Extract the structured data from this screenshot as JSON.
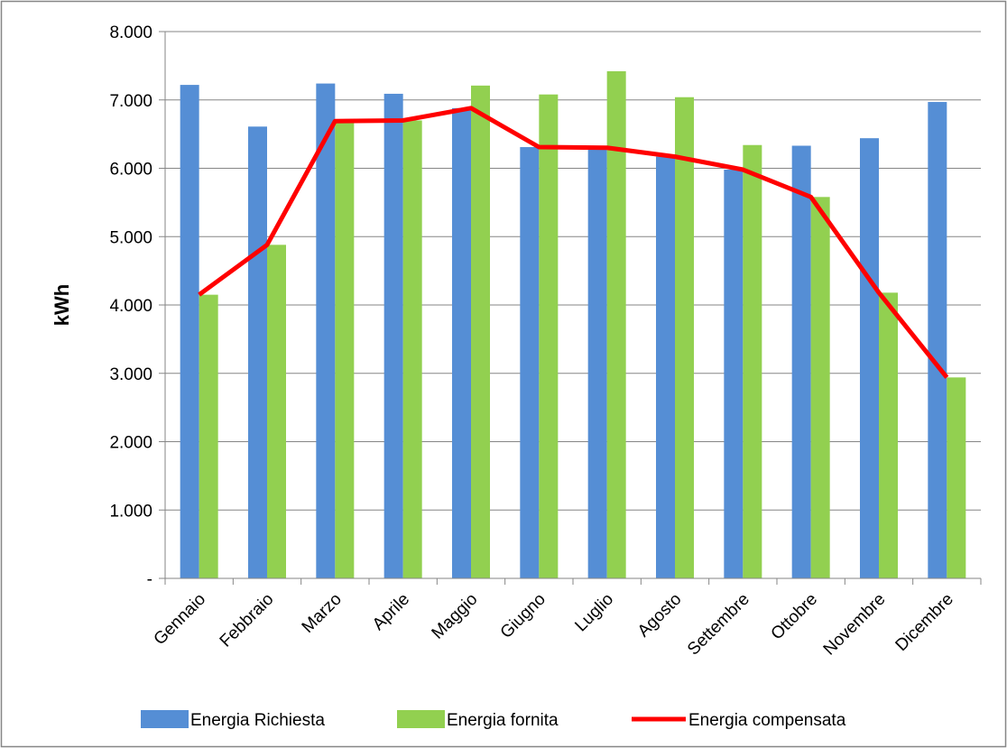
{
  "chart_data": {
    "type": "bar",
    "title": "",
    "xlabel": "",
    "ylabel": "kWh",
    "ylim": [
      0,
      8000
    ],
    "yticks": [
      0,
      1000,
      2000,
      3000,
      4000,
      5000,
      6000,
      7000,
      8000
    ],
    "ytick_labels": [
      "-",
      "1.000",
      "2.000",
      "3.000",
      "4.000",
      "5.000",
      "6.000",
      "7.000",
      "8.000"
    ],
    "grid": true,
    "legend_position": "bottom",
    "categories": [
      "Gennaio",
      "Febbraio",
      "Marzo",
      "Aprile",
      "Maggio",
      "Giugno",
      "Luglio",
      "Agosto",
      "Settembre",
      "Ottobre",
      "Novembre",
      "Dicembre"
    ],
    "series": [
      {
        "name": "Energia Richiesta",
        "kind": "bar",
        "color": "#558ED5",
        "values": [
          7220,
          6610,
          7240,
          7090,
          6880,
          6310,
          6300,
          6170,
          5980,
          6330,
          6440,
          6970
        ]
      },
      {
        "name": "Energia fornita",
        "kind": "bar",
        "color": "#92D050",
        "values": [
          4150,
          4880,
          6690,
          6700,
          7210,
          7080,
          7420,
          7040,
          6340,
          5580,
          4180,
          2940
        ]
      },
      {
        "name": "Energia compensata",
        "kind": "line",
        "color": "#FF0000",
        "values": [
          4150,
          4880,
          6690,
          6700,
          6880,
          6310,
          6300,
          6170,
          5980,
          5580,
          4180,
          2940
        ]
      }
    ]
  }
}
